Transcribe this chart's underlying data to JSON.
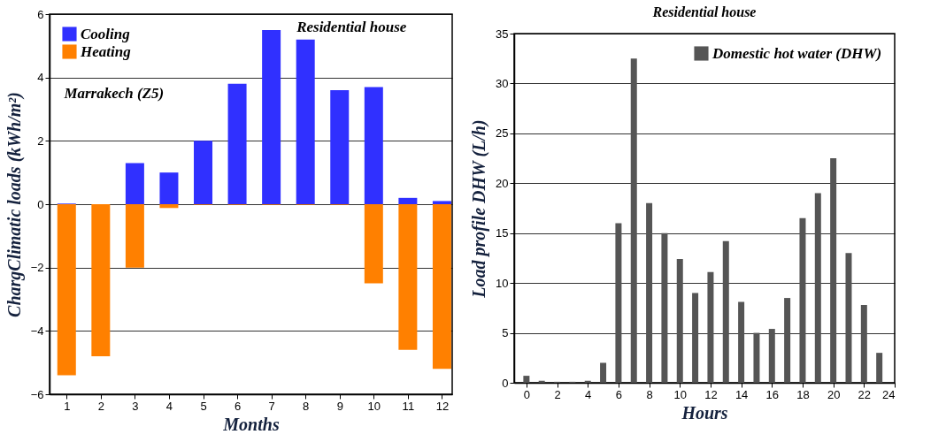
{
  "chart_data": [
    {
      "type": "bar",
      "xlabel": "Months",
      "ylabel": "ChargClimatic loads (kWh/m²)",
      "annotations": [
        "Residential house",
        "Marrakech (Z5)"
      ],
      "x": [
        1,
        2,
        3,
        4,
        5,
        6,
        7,
        8,
        9,
        10,
        11,
        12
      ],
      "xlim": [
        0.5,
        12.3
      ],
      "xticks": [
        1,
        2,
        3,
        4,
        5,
        6,
        7,
        8,
        9,
        10,
        11,
        12
      ],
      "series": [
        {
          "name": "Cooling",
          "color": "#3030ff",
          "values": [
            0.02,
            0,
            1.3,
            1.0,
            2.0,
            3.8,
            5.5,
            5.2,
            3.6,
            3.7,
            0.2,
            0.1
          ]
        },
        {
          "name": "Heating",
          "color": "#ff8000",
          "values": [
            -5.4,
            -4.8,
            -2.0,
            -0.12,
            -0.02,
            -0.02,
            -0.02,
            -0.02,
            -0.02,
            -2.5,
            -4.6,
            -5.2
          ]
        }
      ],
      "ylim": [
        -6,
        6
      ],
      "yticks": [
        -6,
        -4,
        -2,
        0,
        2,
        4,
        6
      ],
      "grid": "y",
      "legend": "top left"
    },
    {
      "type": "bar",
      "title": "Residential house",
      "xlabel": "Hours",
      "ylabel": "Load profile DHW (L/h)",
      "x": [
        0,
        1,
        2,
        3,
        4,
        5,
        6,
        7,
        8,
        9,
        10,
        11,
        12,
        13,
        14,
        15,
        16,
        17,
        18,
        19,
        20,
        21,
        22,
        23
      ],
      "series": [
        {
          "name": "Domestic hot water (DHW)",
          "color": "#555555",
          "values": [
            0.7,
            0.2,
            0.1,
            0.1,
            0.2,
            2,
            16,
            32.5,
            18,
            15,
            12.4,
            9,
            11.1,
            14.2,
            8.1,
            5,
            5.4,
            8.5,
            16.5,
            19,
            22.5,
            13,
            7.8,
            3
          ]
        }
      ],
      "xlim": [
        -0.8,
        24
      ],
      "xticks": [
        0,
        2,
        4,
        6,
        8,
        10,
        12,
        14,
        16,
        18,
        20,
        22,
        24
      ],
      "ylim": [
        0,
        35
      ],
      "yticks": [
        0,
        5,
        10,
        15,
        20,
        25,
        30,
        35
      ],
      "grid": "y",
      "legend": "top right"
    }
  ]
}
